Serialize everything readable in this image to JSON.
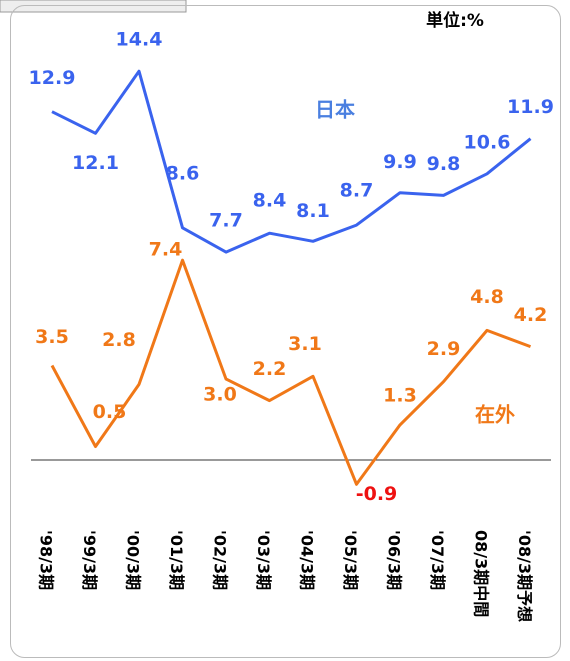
{
  "chart_data": {
    "type": "line",
    "unit_label": "単位:%",
    "categories": [
      "'98/3期",
      "'99/3期",
      "'00/3期",
      "'01/3期",
      "'02/3期",
      "'03/3期",
      "'04/3期",
      "'05/3期",
      "'06/3期",
      "'07/3期",
      "08/3期中間",
      "'08/3期予想"
    ],
    "series": [
      {
        "name": "日本",
        "color": "#3a63ee",
        "values": [
          12.9,
          12.1,
          14.4,
          8.6,
          7.7,
          8.4,
          8.1,
          8.7,
          9.9,
          9.8,
          10.6,
          11.9
        ]
      },
      {
        "name": "在外",
        "color": "#f07818",
        "values": [
          3.5,
          0.5,
          2.8,
          7.4,
          3.0,
          2.2,
          3.1,
          -0.9,
          1.3,
          2.9,
          4.8,
          4.2
        ],
        "value_labels": [
          "3.5",
          "0.5",
          "2.8",
          "7.4",
          "3.0",
          "2.2",
          "3.1",
          "-0.9",
          "1.3",
          "2.9",
          "4.8",
          "4.2"
        ]
      }
    ],
    "negative_label_color": "#ee1111",
    "ylim": [
      -3,
      17
    ]
  }
}
